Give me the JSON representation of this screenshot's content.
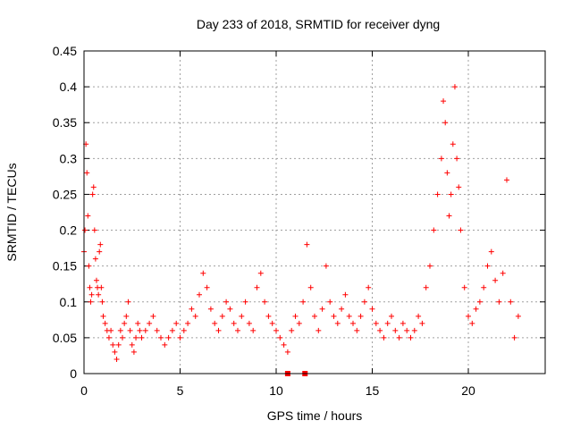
{
  "chart_data": {
    "type": "scatter",
    "title": "Day 233 of 2018, SRMTID for receiver dyng",
    "xlabel": "GPS time / hours",
    "ylabel": "SRMTID / TECUs",
    "xlim": [
      0,
      24
    ],
    "ylim": [
      0,
      0.45
    ],
    "xticks": [
      "0",
      "5",
      "10",
      "15",
      "20"
    ],
    "yticks": [
      "0",
      "0.05",
      "0.1",
      "0.15",
      "0.2",
      "0.25",
      "0.3",
      "0.35",
      "0.4",
      "0.45"
    ],
    "grid": true,
    "marker": "+",
    "marker_color": "#ff0000",
    "baseline_markers": [
      {
        "x": 10.6,
        "y": 0.0
      },
      {
        "x": 11.5,
        "y": 0.0
      }
    ],
    "series": [
      {
        "name": "SRMTID",
        "x": [
          0.0,
          0.05,
          0.1,
          0.15,
          0.2,
          0.25,
          0.3,
          0.35,
          0.4,
          0.45,
          0.5,
          0.55,
          0.6,
          0.65,
          0.7,
          0.75,
          0.8,
          0.85,
          0.9,
          0.95,
          1.0,
          1.1,
          1.2,
          1.3,
          1.4,
          1.5,
          1.6,
          1.7,
          1.8,
          1.9,
          2.0,
          2.1,
          2.2,
          2.3,
          2.4,
          2.5,
          2.6,
          2.7,
          2.8,
          2.9,
          3.0,
          3.2,
          3.4,
          3.6,
          3.8,
          4.0,
          4.2,
          4.4,
          4.6,
          4.8,
          5.0,
          5.2,
          5.4,
          5.6,
          5.8,
          6.0,
          6.2,
          6.4,
          6.6,
          6.8,
          7.0,
          7.2,
          7.4,
          7.6,
          7.8,
          8.0,
          8.2,
          8.4,
          8.6,
          8.8,
          9.0,
          9.2,
          9.4,
          9.6,
          9.8,
          10.0,
          10.2,
          10.4,
          10.6,
          10.8,
          11.0,
          11.2,
          11.4,
          11.6,
          11.8,
          12.0,
          12.2,
          12.4,
          12.6,
          12.8,
          13.0,
          13.2,
          13.4,
          13.6,
          13.8,
          14.0,
          14.2,
          14.4,
          14.6,
          14.8,
          15.0,
          15.2,
          15.4,
          15.6,
          15.8,
          16.0,
          16.2,
          16.4,
          16.6,
          16.8,
          17.0,
          17.2,
          17.4,
          17.6,
          17.8,
          18.0,
          18.2,
          18.4,
          18.6,
          18.7,
          18.8,
          18.9,
          19.0,
          19.1,
          19.2,
          19.3,
          19.4,
          19.5,
          19.6,
          19.8,
          20.0,
          20.2,
          20.4,
          20.6,
          20.8,
          21.0,
          21.2,
          21.4,
          21.6,
          21.8,
          22.0,
          22.2,
          22.4,
          22.6
        ],
        "y": [
          0.17,
          0.2,
          0.32,
          0.28,
          0.22,
          0.15,
          0.12,
          0.1,
          0.11,
          0.25,
          0.26,
          0.2,
          0.16,
          0.13,
          0.12,
          0.11,
          0.17,
          0.18,
          0.12,
          0.1,
          0.08,
          0.07,
          0.06,
          0.05,
          0.06,
          0.04,
          0.03,
          0.02,
          0.04,
          0.06,
          0.05,
          0.07,
          0.08,
          0.1,
          0.06,
          0.04,
          0.03,
          0.05,
          0.07,
          0.06,
          0.05,
          0.06,
          0.07,
          0.08,
          0.06,
          0.05,
          0.04,
          0.05,
          0.06,
          0.07,
          0.05,
          0.06,
          0.07,
          0.09,
          0.08,
          0.11,
          0.14,
          0.12,
          0.09,
          0.07,
          0.06,
          0.08,
          0.1,
          0.09,
          0.07,
          0.06,
          0.08,
          0.1,
          0.07,
          0.06,
          0.12,
          0.14,
          0.1,
          0.08,
          0.07,
          0.06,
          0.05,
          0.04,
          0.03,
          0.06,
          0.08,
          0.07,
          0.1,
          0.18,
          0.12,
          0.08,
          0.06,
          0.09,
          0.15,
          0.1,
          0.08,
          0.07,
          0.09,
          0.11,
          0.08,
          0.07,
          0.06,
          0.08,
          0.1,
          0.12,
          0.09,
          0.07,
          0.06,
          0.05,
          0.07,
          0.08,
          0.06,
          0.05,
          0.07,
          0.06,
          0.05,
          0.06,
          0.08,
          0.07,
          0.12,
          0.15,
          0.2,
          0.25,
          0.3,
          0.38,
          0.35,
          0.28,
          0.22,
          0.25,
          0.32,
          0.4,
          0.3,
          0.26,
          0.2,
          0.12,
          0.08,
          0.07,
          0.09,
          0.1,
          0.12,
          0.15,
          0.17,
          0.13,
          0.1,
          0.14,
          0.27,
          0.1,
          0.05,
          0.08
        ]
      }
    ]
  }
}
